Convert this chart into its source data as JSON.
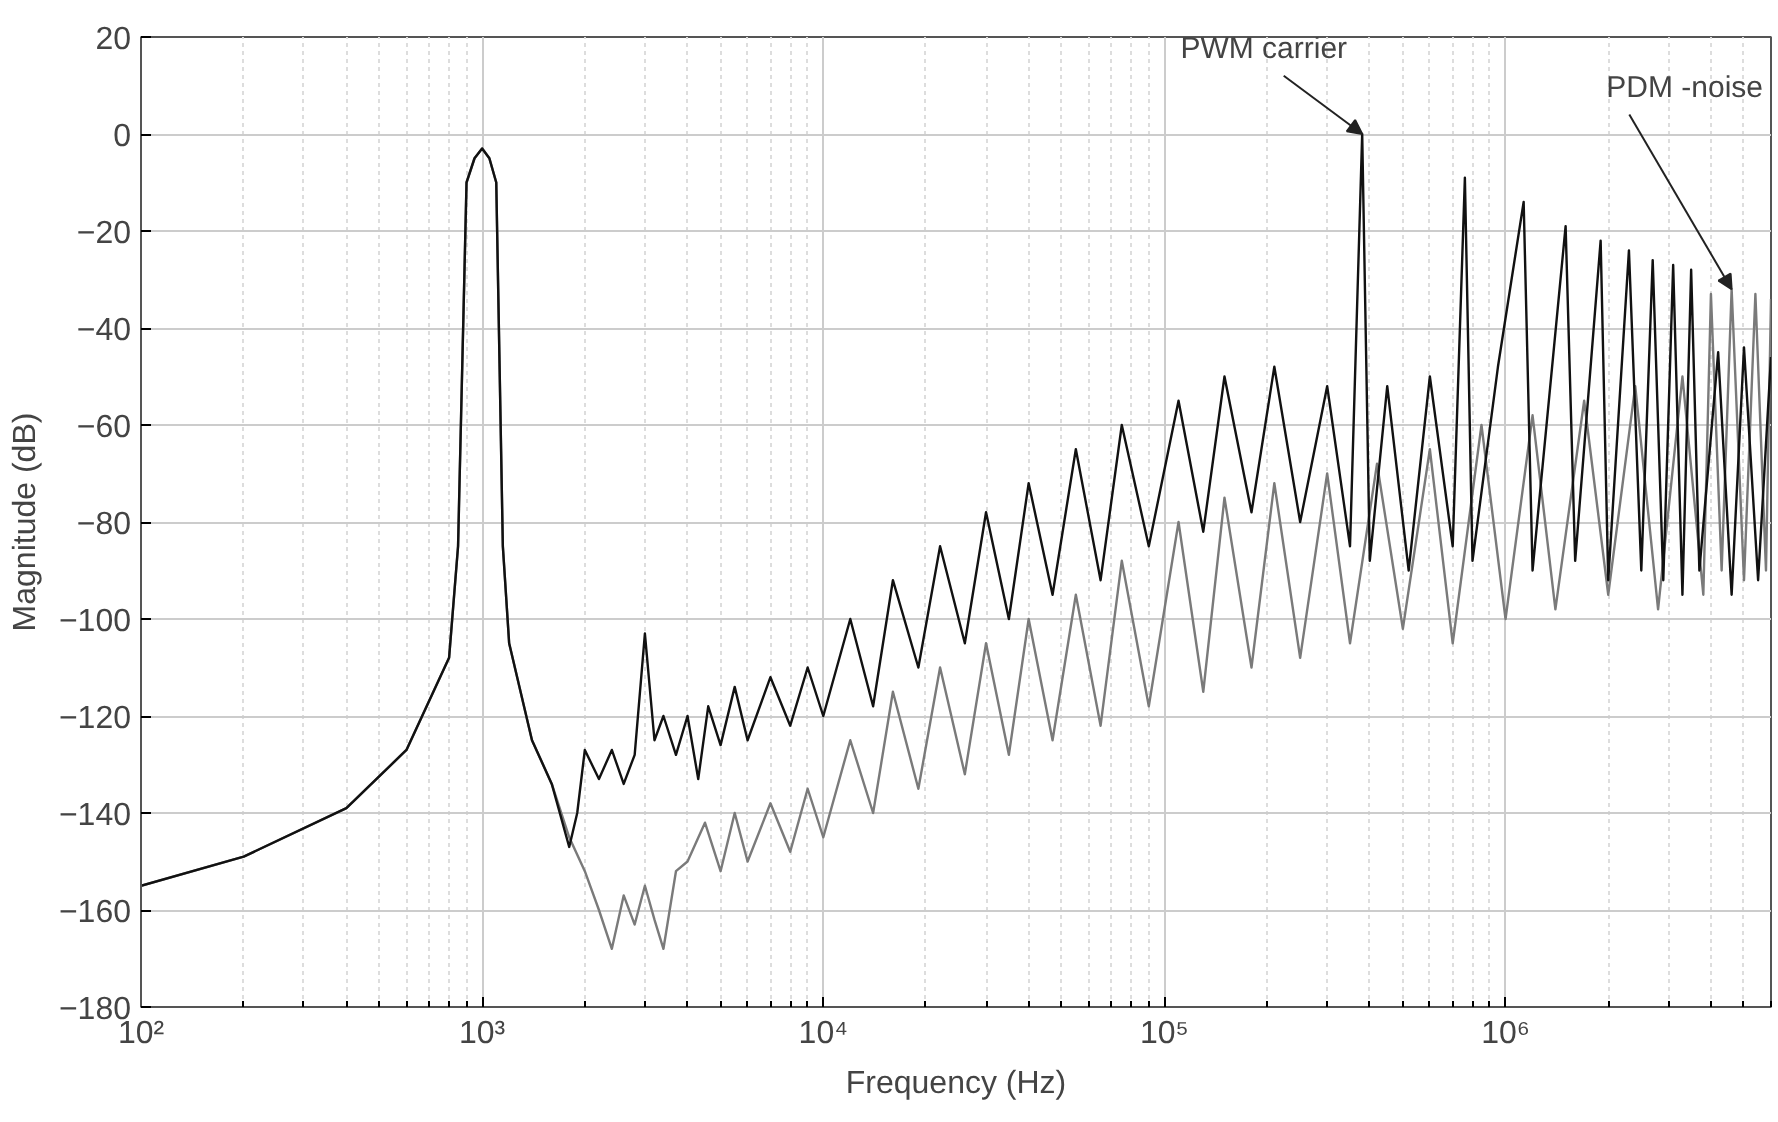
{
  "chart_data": {
    "type": "line",
    "xlabel": "Frequency (Hz)",
    "ylabel": "Magnitude (dB)",
    "log": "x",
    "grid": true,
    "line_style": "solid",
    "marker": "none",
    "xlim": [
      100,
      6000000
    ],
    "ylim": [
      -180,
      20
    ],
    "xticks": [
      {
        "value": 100,
        "label": "10²"
      },
      {
        "value": 1000,
        "label": "10³"
      },
      {
        "value": 10000,
        "label": "10⁴"
      },
      {
        "value": 100000,
        "label": "10⁵"
      },
      {
        "value": 1000000,
        "label": "10⁶"
      }
    ],
    "yticks": [
      {
        "value": -180,
        "label": "−180"
      },
      {
        "value": -160,
        "label": "−160"
      },
      {
        "value": -140,
        "label": "−140"
      },
      {
        "value": -120,
        "label": "−120"
      },
      {
        "value": -100,
        "label": "−100"
      },
      {
        "value": -80,
        "label": "−80"
      },
      {
        "value": -60,
        "label": "−60"
      },
      {
        "value": -40,
        "label": "−40"
      },
      {
        "value": -20,
        "label": "−20"
      },
      0,
      20
    ],
    "annotations": [
      {
        "text": "PWM carrier",
        "x": 380000,
        "y": 0
      },
      {
        "text": "PDM -noise",
        "x": 4600000,
        "y": -32
      }
    ],
    "series": [
      {
        "color": "#7a7a7a",
        "x": [
          100,
          200,
          400,
          600,
          800,
          850,
          900,
          950,
          1000,
          1050,
          1100,
          1150,
          1200,
          1400,
          1600,
          1800,
          2000,
          2200,
          2400,
          2600,
          2800,
          3000,
          3200,
          3400,
          3700,
          4000,
          4500,
          5000,
          5500,
          6000,
          7000,
          8000,
          9000,
          10000,
          12000,
          14000,
          16000,
          19000,
          22000,
          26000,
          30000,
          35000,
          40000,
          47000,
          55000,
          65000,
          75000,
          90000,
          110000,
          130000,
          150000,
          180000,
          210000,
          250000,
          300000,
          350000,
          420000,
          500000,
          600000,
          700000,
          850000,
          1000000,
          1200000,
          1400000,
          1700000,
          2000000,
          2400000,
          2800000,
          3300000,
          3800000,
          4000000,
          4300000,
          4600000,
          5000000,
          5400000,
          5800000,
          6000000
        ],
        "values": [
          -155,
          -149,
          -139,
          -127,
          -108,
          -85,
          -10,
          -5,
          -3,
          -5,
          -10,
          -85,
          -105,
          -125,
          -134,
          -145,
          -152,
          -160,
          -168,
          -157,
          -163,
          -155,
          -162,
          -168,
          -152,
          -150,
          -142,
          -152,
          -140,
          -150,
          -138,
          -148,
          -135,
          -145,
          -125,
          -140,
          -115,
          -135,
          -110,
          -132,
          -105,
          -128,
          -100,
          -125,
          -95,
          -122,
          -88,
          -118,
          -80,
          -115,
          -75,
          -110,
          -72,
          -108,
          -70,
          -105,
          -68,
          -102,
          -65,
          -105,
          -60,
          -100,
          -58,
          -98,
          -55,
          -95,
          -52,
          -98,
          -50,
          -95,
          -33,
          -90,
          -32,
          -92,
          -33,
          -90,
          -34
        ]
      },
      {
        "color": "#111111",
        "x": [
          100,
          200,
          400,
          600,
          800,
          850,
          900,
          950,
          1000,
          1050,
          1100,
          1150,
          1200,
          1400,
          1600,
          1800,
          1900,
          2000,
          2200,
          2400,
          2600,
          2800,
          3000,
          3200,
          3400,
          3700,
          4000,
          4300,
          4600,
          5000,
          5500,
          6000,
          7000,
          8000,
          9000,
          10000,
          12000,
          14000,
          16000,
          19000,
          22000,
          26000,
          30000,
          35000,
          40000,
          47000,
          55000,
          65000,
          75000,
          90000,
          110000,
          130000,
          150000,
          180000,
          210000,
          250000,
          300000,
          350000,
          380000,
          400000,
          450000,
          520000,
          600000,
          700000,
          760000,
          800000,
          950000,
          1130000,
          1200000,
          1500000,
          1600000,
          1900000,
          2000000,
          2300000,
          2500000,
          2700000,
          2900000,
          3100000,
          3300000,
          3500000,
          3700000,
          4200000,
          4600000,
          5000000,
          5500000,
          6000000
        ],
        "values": [
          -155,
          -149,
          -139,
          -127,
          -108,
          -85,
          -10,
          -5,
          -3,
          -5,
          -10,
          -85,
          -105,
          -125,
          -134,
          -147,
          -140,
          -127,
          -133,
          -127,
          -134,
          -128,
          -103,
          -125,
          -120,
          -128,
          -120,
          -133,
          -118,
          -126,
          -114,
          -125,
          -112,
          -122,
          -110,
          -120,
          -100,
          -118,
          -92,
          -110,
          -85,
          -105,
          -78,
          -100,
          -72,
          -95,
          -65,
          -92,
          -60,
          -85,
          -55,
          -82,
          -50,
          -78,
          -48,
          -80,
          -52,
          -85,
          0,
          -88,
          -52,
          -90,
          -50,
          -85,
          -9,
          -88,
          -48,
          -14,
          -90,
          -19,
          -88,
          -22,
          -92,
          -24,
          -90,
          -26,
          -92,
          -27,
          -95,
          -28,
          -90,
          -45,
          -95,
          -44,
          -92,
          -46
        ]
      }
    ]
  }
}
